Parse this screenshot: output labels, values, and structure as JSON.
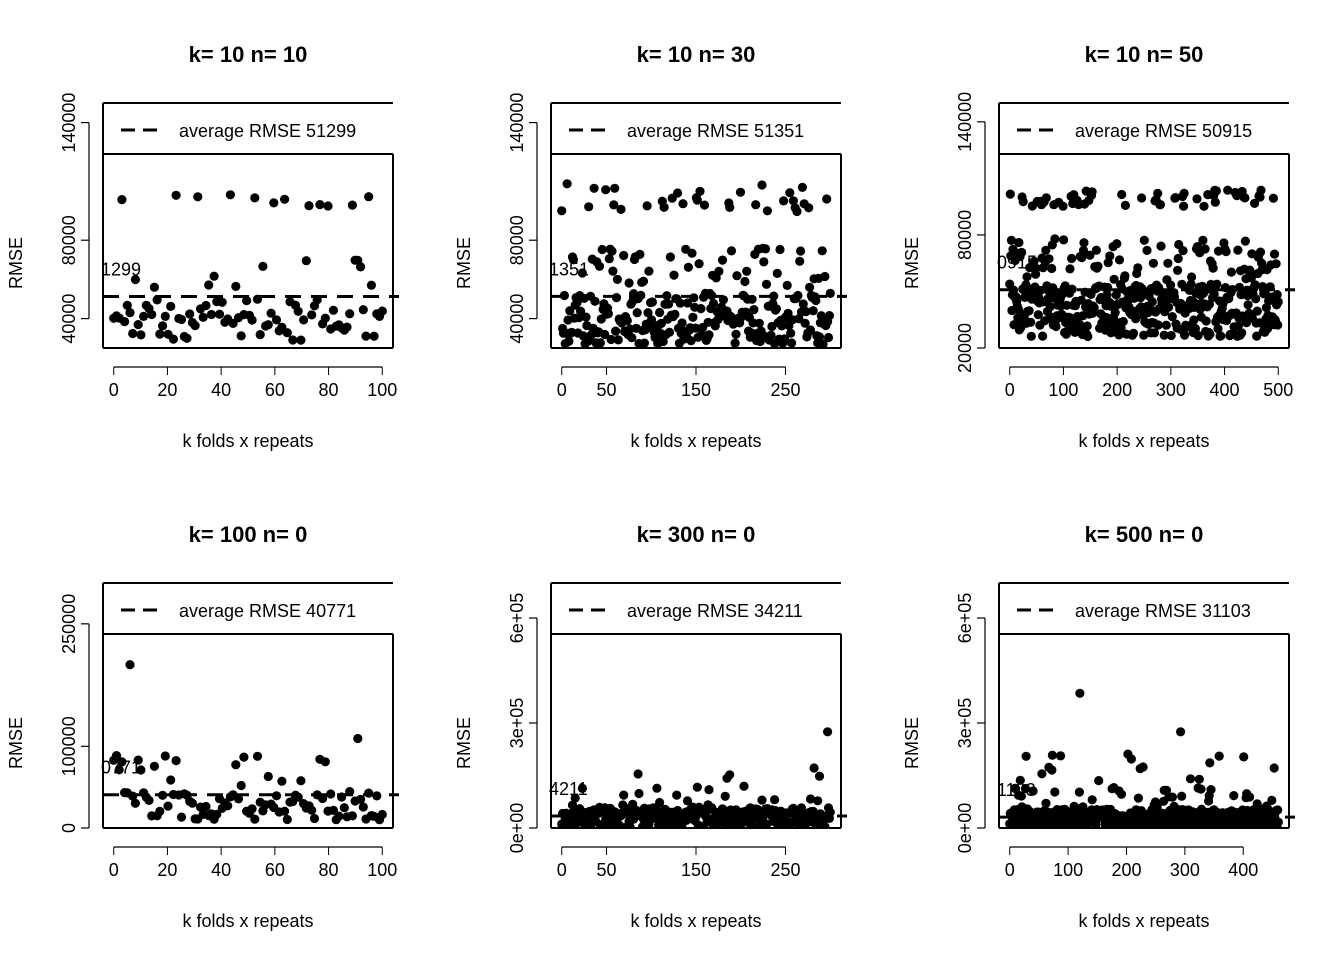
{
  "colors": {
    "points": "#000000",
    "background": "#ffffff",
    "axes": "#000000"
  },
  "chart_data": [
    {
      "type": "scatter",
      "title": "k= 10 n= 10",
      "xlabel": "k folds x repeats",
      "ylabel": "RMSE",
      "xlim": [
        0,
        100
      ],
      "ylim": [
        25000,
        150000
      ],
      "plot_ymax": 123000,
      "xticks": [
        0,
        20,
        40,
        60,
        80,
        100
      ],
      "xtick_labels": [
        "0",
        "20",
        "40",
        "60",
        "80",
        "100"
      ],
      "yticks": [
        40000,
        80000,
        140000
      ],
      "ytick_labels": [
        "40000",
        "80000",
        "140000"
      ],
      "n_points": 100,
      "point_profile": {
        "base_min": 29000,
        "base_max": 50000,
        "mid_min": 55000,
        "mid_max": 73000,
        "high_min": 97000,
        "high_max": 104000,
        "mid_share": 0.17,
        "high_share": 0.1,
        "outliers": [],
        "seed": 11
      },
      "average_rmse": 51299,
      "average_label": "1299",
      "legend": {
        "position": "top",
        "label": "average RMSE 51299",
        "line_style": "dashed"
      },
      "grid": false
    },
    {
      "type": "scatter",
      "title": "k= 10 n= 30",
      "xlabel": "k folds x repeats",
      "ylabel": "RMSE",
      "xlim": [
        0,
        300
      ],
      "ylim": [
        25000,
        150000
      ],
      "plot_ymax": 123000,
      "xticks": [
        0,
        50,
        150,
        250
      ],
      "xtick_labels": [
        "0",
        "50",
        "150",
        "250"
      ],
      "yticks": [
        40000,
        80000,
        140000
      ],
      "ytick_labels": [
        "40000",
        "80000",
        "140000"
      ],
      "n_points": 300,
      "point_profile": {
        "base_min": 27000,
        "base_max": 53000,
        "mid_min": 55000,
        "mid_max": 76000,
        "high_min": 94000,
        "high_max": 109000,
        "mid_share": 0.17,
        "high_share": 0.1,
        "outliers": [],
        "seed": 23
      },
      "average_rmse": 51351,
      "average_label": "1351",
      "legend": {
        "position": "top",
        "label": "average RMSE 51351",
        "line_style": "dashed"
      },
      "grid": false
    },
    {
      "type": "scatter",
      "title": "k= 10 n= 50",
      "xlabel": "k folds x repeats",
      "ylabel": "RMSE",
      "xlim": [
        0,
        500
      ],
      "ylim": [
        20000,
        150000
      ],
      "plot_ymax": 123000,
      "xticks": [
        0,
        100,
        200,
        300,
        400,
        500
      ],
      "xtick_labels": [
        "0",
        "100",
        "200",
        "300",
        "400",
        "500"
      ],
      "yticks": [
        20000,
        80000,
        140000
      ],
      "ytick_labels": [
        "20000",
        "80000",
        "140000"
      ],
      "n_points": 500,
      "point_profile": {
        "base_min": 26000,
        "base_max": 54000,
        "mid_min": 56000,
        "mid_max": 78000,
        "high_min": 95000,
        "high_max": 104000,
        "mid_share": 0.17,
        "high_share": 0.1,
        "outliers": [],
        "seed": 37
      },
      "average_rmse": 50915,
      "average_label": "0915",
      "legend": {
        "position": "top",
        "label": "average RMSE 50915",
        "line_style": "dashed"
      },
      "grid": false
    },
    {
      "type": "scatter",
      "title": "k= 100 n= 0",
      "xlabel": "k folds x repeats",
      "ylabel": "RMSE",
      "xlim": [
        0,
        100
      ],
      "ylim": [
        0,
        300000
      ],
      "plot_ymax": 255000,
      "xticks": [
        0,
        20,
        40,
        60,
        80,
        100
      ],
      "xtick_labels": [
        "0",
        "20",
        "40",
        "60",
        "80",
        "100"
      ],
      "yticks": [
        0,
        100000,
        250000
      ],
      "ytick_labels": [
        "0",
        "100000",
        "250000"
      ],
      "n_points": 100,
      "point_profile": {
        "base_min": 10000,
        "base_max": 45000,
        "mid_min": 50000,
        "mid_max": 90000,
        "high_min": 95000,
        "high_max": 128000,
        "mid_share": 0.12,
        "high_share": 0.04,
        "outliers": [
          [
            6,
            200000
          ]
        ],
        "seed": 53
      },
      "average_rmse": 40771,
      "average_label": "0771",
      "legend": {
        "position": "top",
        "label": "average RMSE 40771",
        "line_style": "dashed"
      },
      "grid": false
    },
    {
      "type": "scatter",
      "title": "k= 300 n= 0",
      "xlabel": "k folds x repeats",
      "ylabel": "RMSE",
      "xlim": [
        0,
        300
      ],
      "ylim": [
        0,
        700000
      ],
      "plot_ymax": 595000,
      "xticks": [
        0,
        50,
        150,
        250
      ],
      "xtick_labels": [
        "0",
        "50",
        "150",
        "250"
      ],
      "yticks": [
        0,
        300000,
        600000
      ],
      "ytick_labels": [
        "0e+00",
        "3e+05",
        "6e+05"
      ],
      "n_points": 300,
      "point_profile": {
        "base_min": 2000,
        "base_max": 60000,
        "mid_min": 65000,
        "mid_max": 120000,
        "high_min": 125000,
        "high_max": 180000,
        "mid_share": 0.08,
        "high_share": 0.03,
        "outliers": [
          [
            296,
            275000
          ]
        ],
        "seed": 71
      },
      "average_rmse": 34211,
      "average_label": "4211",
      "legend": {
        "position": "top",
        "label": "average RMSE 34211",
        "line_style": "dashed"
      },
      "grid": false
    },
    {
      "type": "scatter",
      "title": "k= 500 n= 0",
      "xlabel": "k folds x repeats",
      "ylabel": "RMSE",
      "xlim": [
        0,
        460
      ],
      "ylim": [
        0,
        700000
      ],
      "plot_ymax": 595000,
      "xticks": [
        0,
        100,
        200,
        300,
        400
      ],
      "xtick_labels": [
        "0",
        "100",
        "200",
        "300",
        "400"
      ],
      "yticks": [
        0,
        300000,
        600000
      ],
      "ytick_labels": [
        "0e+00",
        "3e+05",
        "6e+05"
      ],
      "n_points": 460,
      "point_profile": {
        "base_min": 2000,
        "base_max": 55000,
        "mid_min": 60000,
        "mid_max": 120000,
        "high_min": 125000,
        "high_max": 230000,
        "mid_share": 0.08,
        "high_share": 0.03,
        "outliers": [
          [
            120,
            385000
          ],
          [
            292,
            275000
          ]
        ],
        "seed": 89
      },
      "average_rmse": 31103,
      "average_label": "1103",
      "legend": {
        "position": "top",
        "label": "average RMSE 31103",
        "line_style": "dashed"
      },
      "grid": false
    }
  ]
}
